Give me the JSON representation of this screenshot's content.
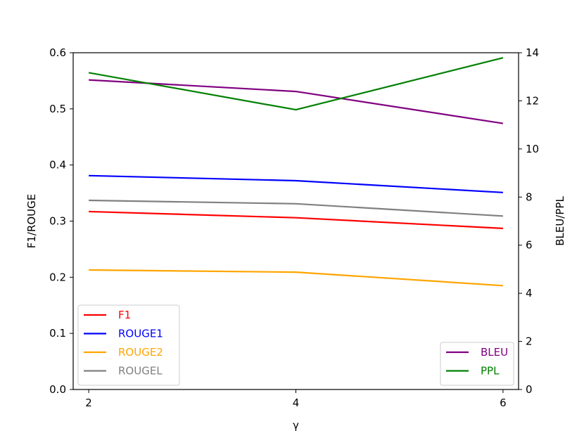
{
  "chart_data": {
    "type": "line",
    "x": [
      2,
      4,
      6
    ],
    "xlabel": "γ",
    "xticks": [
      2,
      4,
      6
    ],
    "xlim": [
      1.85,
      6.15
    ],
    "left_axis": {
      "label": "F1/ROUGE",
      "ylim": [
        0.0,
        0.6
      ],
      "ticks": [
        "0.0",
        "0.1",
        "0.2",
        "0.3",
        "0.4",
        "0.5",
        "0.6"
      ]
    },
    "right_axis": {
      "label": "BLEU/PPL",
      "ylim": [
        0,
        14
      ],
      "ticks": [
        "0",
        "2",
        "4",
        "6",
        "8",
        "10",
        "12",
        "14"
      ]
    },
    "series_left": [
      {
        "name": "F1",
        "color": "#ff0000",
        "values": [
          0.317,
          0.306,
          0.287
        ]
      },
      {
        "name": "ROUGE1",
        "color": "#0000ff",
        "values": [
          0.381,
          0.372,
          0.351
        ]
      },
      {
        "name": "ROUGE2",
        "color": "#ffa500",
        "values": [
          0.213,
          0.209,
          0.185
        ]
      },
      {
        "name": "ROUGEL",
        "color": "#808080",
        "values": [
          0.337,
          0.331,
          0.309
        ]
      }
    ],
    "series_right": [
      {
        "name": "BLEU",
        "color": "#800080",
        "values": [
          12.87,
          12.39,
          11.06
        ]
      },
      {
        "name": "PPL",
        "color": "#008000",
        "values": [
          13.17,
          11.63,
          13.79
        ]
      }
    ],
    "legend_left_placement": "lower-left",
    "legend_right_placement": "lower-right",
    "grid": false
  }
}
